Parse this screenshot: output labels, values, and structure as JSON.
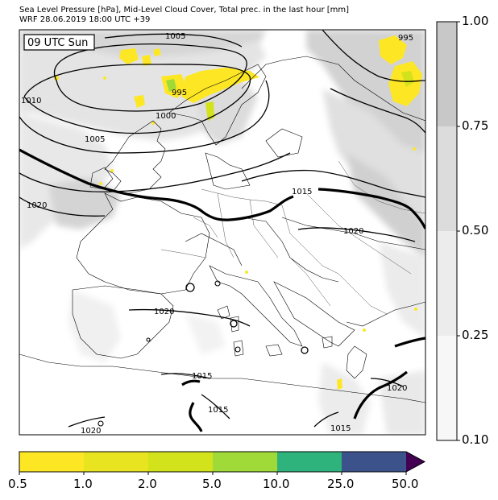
{
  "header": {
    "line1": "Sea Level Pressure [hPa], Mid-Level Cloud Cover, Total prec. in the last hour [mm]",
    "line2": "WRF 28.06.2019 18:00 UTC +39"
  },
  "map": {
    "time_badge": "09 UTC Sun",
    "isobar_labels": [
      "1005",
      "995",
      "1010",
      "1000",
      "995",
      "1005",
      "1020",
      "1015",
      "1020",
      "1020",
      "1015",
      "1015",
      "1020",
      "1020",
      "1015"
    ]
  },
  "cloud_cover_scale": {
    "ticks": [
      "1.00",
      "0.75",
      "0.50",
      "0.25",
      "0.10"
    ],
    "colors": [
      "#c8c8c8",
      "#dcdcdc",
      "#ececec",
      "#f7f7f7"
    ]
  },
  "precip_scale": {
    "ticks": [
      "0.5",
      "1.0",
      "2.0",
      "5.0",
      "10.0",
      "25.0",
      "50.0"
    ],
    "colors": [
      "#fde725",
      "#e8e41f",
      "#d2e21b",
      "#a0da39",
      "#2eb37c",
      "#3b528b",
      "#440154"
    ]
  }
}
